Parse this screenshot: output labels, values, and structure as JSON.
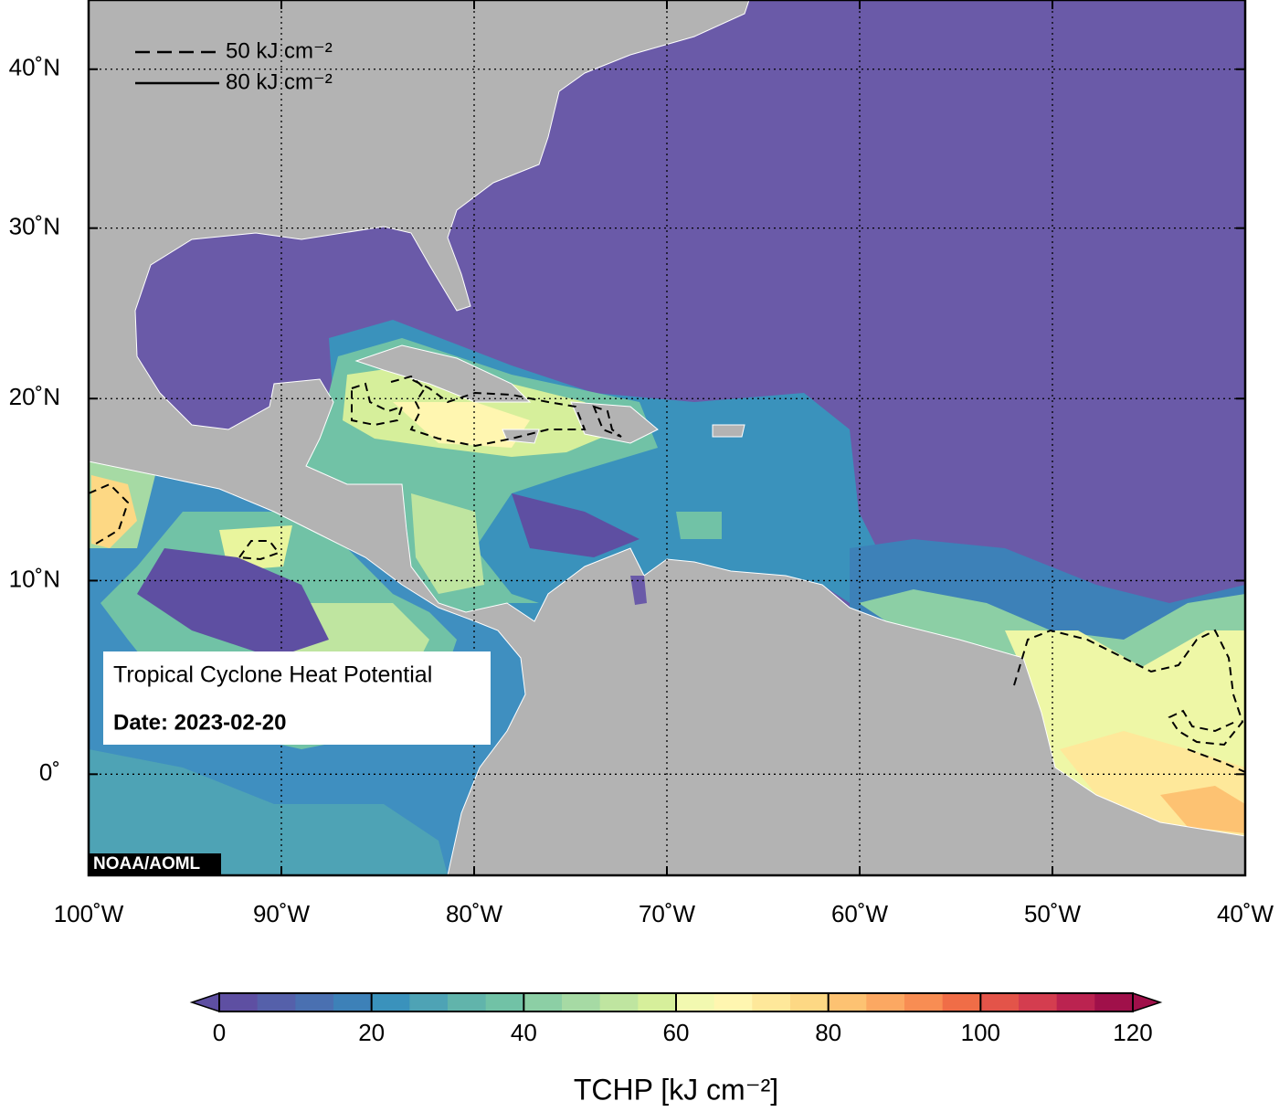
{
  "map": {
    "title": "Tropical Cyclone Heat Potential",
    "date_label": "Date: 2023-02-20",
    "credit": "NOAA/AOML",
    "xlim": [
      -100,
      -40
    ],
    "ylim": [
      -5,
      44.6
    ],
    "xticks": [
      {
        "value": -100,
        "label": "100˚W"
      },
      {
        "value": -90,
        "label": "90˚W"
      },
      {
        "value": -80,
        "label": "80˚W"
      },
      {
        "value": -70,
        "label": "70˚W"
      },
      {
        "value": -60,
        "label": "60˚W"
      },
      {
        "value": -50,
        "label": "50˚W"
      },
      {
        "value": -40,
        "label": "40˚W"
      }
    ],
    "yticks": [
      {
        "value": 0,
        "label": "0˚"
      },
      {
        "value": 10,
        "label": "10˚N"
      },
      {
        "value": 20,
        "label": "20˚N"
      },
      {
        "value": 30,
        "label": "30˚N"
      },
      {
        "value": 40,
        "label": "40˚N"
      }
    ],
    "grid": true,
    "contours": [
      {
        "label": "50 kJ cm⁻²",
        "style": "dashed"
      },
      {
        "label": "80 kJ cm⁻²",
        "style": "solid"
      }
    ],
    "colorbar": {
      "label": "TCHP [kJ cm⁻²]",
      "lim": [
        0,
        120
      ],
      "ticks": [
        0,
        20,
        40,
        60,
        80,
        100,
        120
      ],
      "colors": [
        "#5e4fa2",
        "#5560aa",
        "#4a70b1",
        "#3d81b8",
        "#3a92bc",
        "#4ea3b5",
        "#61b4ab",
        "#71c2a6",
        "#8ccfa5",
        "#a6daa4",
        "#bfe5a0",
        "#d6ef9b",
        "#f2f9b0",
        "#fff6b0",
        "#fee89a",
        "#fdd884",
        "#fdc272",
        "#fca862",
        "#f88d53",
        "#f06d47",
        "#e35449",
        "#d43d4f",
        "#bb2350",
        "#a0104a"
      ]
    }
  }
}
